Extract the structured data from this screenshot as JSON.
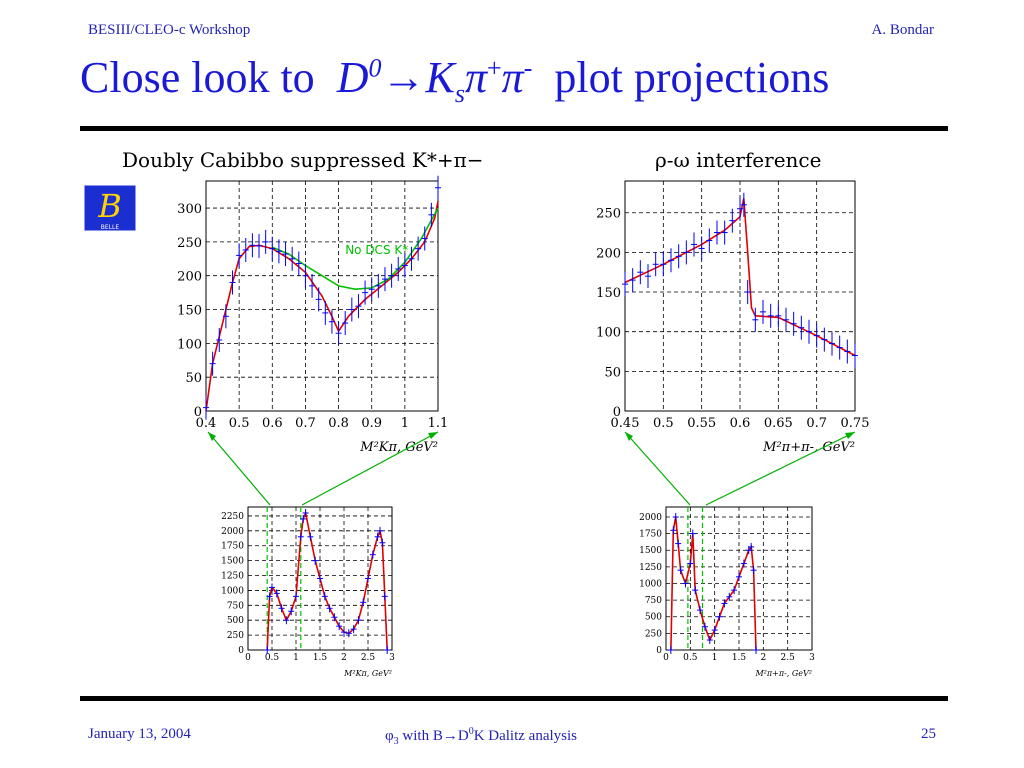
{
  "header": {
    "left": "BESIII/CLEO-c Workshop",
    "right": "A. Bondar"
  },
  "title": {
    "prefix": "Close look to",
    "d": "D",
    "d_sup": "0",
    "arrow": "→",
    "k": "K",
    "k_sub": "s",
    "pi1": "π",
    "pi1_sup": "+",
    "pi2": "π",
    "pi2_sup": "-",
    "suffix": "plot projections"
  },
  "logo": {
    "letter": "B",
    "text": "BELLE"
  },
  "footer": {
    "date": "January 13, 2004",
    "center_phi": "φ",
    "center_phi_sub": "3",
    "center_mid": " with B→D",
    "center_sup": "0",
    "center_end": "K Dalitz analysis",
    "page": "25"
  },
  "colors": {
    "text_blue": "#1a1ad6",
    "data": "#0000ff",
    "fit": "#e00000",
    "nodcs": "#00c000",
    "arrow": "#00b000"
  },
  "chart_data": [
    {
      "type": "scatter",
      "title": "Doubly Cabibbo suppressed K*+π−",
      "xlabel": "M²Kπ, GeV²",
      "xlim": [
        0.4,
        1.1
      ],
      "ylim": [
        0,
        340
      ],
      "xticks": [
        "0.4",
        "0.5",
        "0.6",
        "0.7",
        "0.8",
        "0.9",
        "1",
        "1.1"
      ],
      "yticks": [
        "0",
        "50",
        "100",
        "150",
        "200",
        "250",
        "300"
      ],
      "annotation": "No DCS K*",
      "x": [
        0.4,
        0.42,
        0.44,
        0.46,
        0.48,
        0.5,
        0.52,
        0.54,
        0.56,
        0.58,
        0.6,
        0.62,
        0.64,
        0.66,
        0.68,
        0.7,
        0.72,
        0.74,
        0.76,
        0.78,
        0.8,
        0.82,
        0.84,
        0.86,
        0.88,
        0.9,
        0.92,
        0.94,
        0.96,
        0.98,
        1.0,
        1.02,
        1.04,
        1.06,
        1.08,
        1.1
      ],
      "y": [
        5,
        70,
        105,
        140,
        190,
        230,
        238,
        245,
        244,
        250,
        240,
        236,
        232,
        225,
        218,
        200,
        185,
        165,
        145,
        132,
        115,
        130,
        150,
        155,
        175,
        180,
        185,
        195,
        200,
        210,
        215,
        225,
        240,
        255,
        290,
        330
      ],
      "series": [
        {
          "name": "fit",
          "x": [
            0.4,
            0.42,
            0.45,
            0.48,
            0.5,
            0.53,
            0.56,
            0.6,
            0.65,
            0.7,
            0.75,
            0.78,
            0.8,
            0.83,
            0.88,
            0.93,
            0.98,
            1.02,
            1.06,
            1.09,
            1.1
          ],
          "y": [
            0,
            70,
            130,
            190,
            225,
            243,
            245,
            240,
            225,
            205,
            170,
            140,
            118,
            140,
            165,
            185,
            205,
            225,
            250,
            285,
            310
          ]
        },
        {
          "name": "No DCS K*",
          "x": [
            0.6,
            0.65,
            0.7,
            0.75,
            0.8,
            0.85,
            0.9,
            0.95,
            1.0,
            1.05,
            1.1
          ],
          "y": [
            242,
            232,
            215,
            200,
            185,
            180,
            182,
            195,
            220,
            255,
            300
          ]
        }
      ]
    },
    {
      "type": "scatter",
      "title": "ρ-ω interference",
      "xlabel": "M²π+π-, GeV²",
      "xlim": [
        0.45,
        0.75
      ],
      "ylim": [
        0,
        290
      ],
      "xticks": [
        "0.45",
        "0.5",
        "0.55",
        "0.6",
        "0.65",
        "0.7",
        "0.75"
      ],
      "yticks": [
        "0",
        "50",
        "100",
        "150",
        "200",
        "250"
      ],
      "x": [
        0.45,
        0.46,
        0.47,
        0.48,
        0.49,
        0.5,
        0.51,
        0.52,
        0.53,
        0.54,
        0.55,
        0.56,
        0.57,
        0.58,
        0.59,
        0.6,
        0.605,
        0.61,
        0.62,
        0.63,
        0.64,
        0.65,
        0.66,
        0.67,
        0.68,
        0.69,
        0.7,
        0.71,
        0.72,
        0.73,
        0.74,
        0.75
      ],
      "y": [
        160,
        165,
        175,
        170,
        185,
        185,
        190,
        195,
        200,
        210,
        205,
        215,
        225,
        225,
        240,
        255,
        260,
        150,
        115,
        125,
        120,
        120,
        115,
        110,
        105,
        100,
        95,
        90,
        85,
        80,
        75,
        70
      ],
      "series": [
        {
          "name": "fit",
          "x": [
            0.45,
            0.5,
            0.55,
            0.58,
            0.6,
            0.605,
            0.61,
            0.615,
            0.62,
            0.65,
            0.7,
            0.75
          ],
          "y": [
            162,
            185,
            210,
            228,
            245,
            268,
            200,
            130,
            120,
            118,
            95,
            70
          ]
        }
      ]
    },
    {
      "type": "scatter",
      "title": "",
      "xlabel": "M²Kπ, GeV²",
      "xlim": [
        0,
        3
      ],
      "ylim": [
        0,
        2400
      ],
      "xticks": [
        "0",
        "0.5",
        "1",
        "1.5",
        "2",
        "2.5",
        "3"
      ],
      "yticks": [
        "0",
        "250",
        "500",
        "750",
        "1000",
        "1250",
        "1500",
        "1750",
        "2000",
        "2250"
      ],
      "x": [
        0.4,
        0.45,
        0.5,
        0.6,
        0.7,
        0.8,
        0.9,
        1.0,
        1.1,
        1.15,
        1.2,
        1.3,
        1.4,
        1.5,
        1.6,
        1.7,
        1.8,
        1.9,
        2.0,
        2.1,
        2.2,
        2.3,
        2.4,
        2.5,
        2.6,
        2.7,
        2.75,
        2.8,
        2.85,
        2.9
      ],
      "y": [
        0,
        900,
        1050,
        950,
        700,
        500,
        650,
        900,
        1900,
        2200,
        2300,
        1900,
        1500,
        1200,
        900,
        700,
        550,
        400,
        300,
        280,
        350,
        500,
        800,
        1200,
        1600,
        1900,
        2000,
        1800,
        900,
        0
      ],
      "series": [
        {
          "name": "fit",
          "x": [
            0.4,
            0.45,
            0.5,
            0.6,
            0.7,
            0.8,
            0.9,
            1.0,
            1.1,
            1.15,
            1.2,
            1.3,
            1.4,
            1.5,
            1.6,
            1.7,
            1.8,
            1.9,
            2.0,
            2.1,
            2.2,
            2.3,
            2.4,
            2.5,
            2.6,
            2.7,
            2.75,
            2.8,
            2.85,
            2.9
          ],
          "y": [
            0,
            900,
            1050,
            950,
            700,
            500,
            650,
            900,
            1900,
            2200,
            2300,
            1900,
            1500,
            1200,
            900,
            700,
            550,
            400,
            300,
            280,
            350,
            500,
            800,
            1200,
            1600,
            1900,
            2000,
            1800,
            900,
            0
          ]
        }
      ],
      "markers": [
        0.4,
        1.1
      ]
    },
    {
      "type": "scatter",
      "title": "",
      "xlabel": "M²π+π-, GeV²",
      "xlim": [
        0,
        3
      ],
      "ylim": [
        0,
        2150
      ],
      "xticks": [
        "0",
        "0.5",
        "1",
        "1.5",
        "2",
        "2.5",
        "3"
      ],
      "yticks": [
        "0",
        "250",
        "500",
        "750",
        "1000",
        "1250",
        "1500",
        "1750",
        "2000"
      ],
      "x": [
        0.1,
        0.15,
        0.2,
        0.25,
        0.3,
        0.4,
        0.5,
        0.55,
        0.6,
        0.7,
        0.8,
        0.9,
        1.0,
        1.1,
        1.2,
        1.3,
        1.4,
        1.5,
        1.6,
        1.7,
        1.75,
        1.8,
        1.85
      ],
      "y": [
        0,
        1800,
        2000,
        1600,
        1200,
        1000,
        1300,
        1750,
        900,
        600,
        350,
        150,
        300,
        500,
        700,
        800,
        900,
        1100,
        1300,
        1500,
        1550,
        1200,
        0
      ],
      "series": [
        {
          "name": "fit",
          "x": [
            0.1,
            0.15,
            0.2,
            0.25,
            0.3,
            0.4,
            0.5,
            0.55,
            0.6,
            0.7,
            0.8,
            0.9,
            1.0,
            1.1,
            1.2,
            1.3,
            1.4,
            1.5,
            1.6,
            1.7,
            1.75,
            1.8,
            1.85
          ],
          "y": [
            0,
            1800,
            2000,
            1600,
            1200,
            1000,
            1300,
            1750,
            900,
            600,
            350,
            150,
            300,
            500,
            700,
            800,
            900,
            1100,
            1300,
            1500,
            1550,
            1200,
            0
          ]
        }
      ],
      "markers": [
        0.45,
        0.75
      ]
    }
  ]
}
